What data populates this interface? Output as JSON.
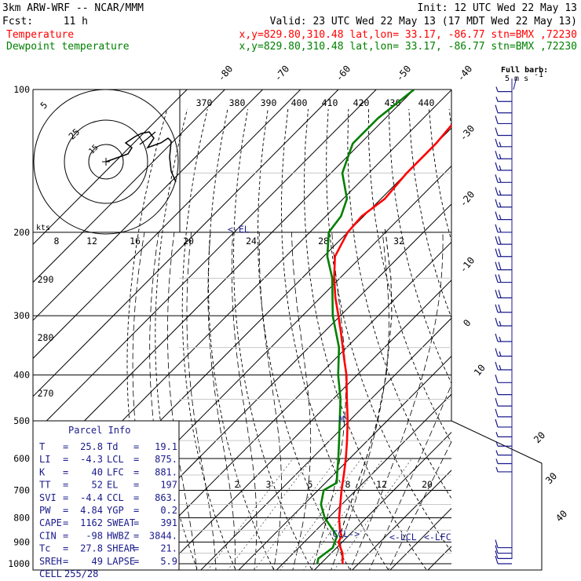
{
  "header": {
    "title": "3km ARW-WRF -- NCAR/MMM",
    "init": "Init: 12 UTC Wed 22 May 13",
    "fcst_label": "Fcst:",
    "fcst_value": "11 h",
    "valid": "Valid: 23 UTC Wed 22 May 13 (17 MDT Wed 22 May 13)"
  },
  "legend": [
    {
      "name": "Temperature",
      "info": "x,y=829.80,310.48   lat,lon= 33.17, -86.77  stn=BMX ,72230",
      "color": "#ff0000"
    },
    {
      "name": "Dewpoint temperature",
      "info": "x,y=829.80,310.48   lat,lon= 33.17, -86.77  stn=BMX ,72230",
      "color": "#008000"
    }
  ],
  "colors": {
    "temperature": "#ff0000",
    "dewpoint": "#008000",
    "wind": "#1a1a8c",
    "grid": "#000000",
    "mixing": "#555555"
  },
  "chart_data": {
    "type": "line",
    "subtype": "skew-t log-p",
    "ylabel_ticks": [
      "100",
      "200",
      "300",
      "400",
      "500",
      "600",
      "700",
      "800",
      "900",
      "1000"
    ],
    "isotherm_labels": [
      "-80",
      "-70",
      "-60",
      "-50",
      "-40",
      "-30",
      "-20",
      "-10",
      "0",
      "10",
      "20",
      "30",
      "40"
    ],
    "theta_labels": [
      "370",
      "380",
      "390",
      "400",
      "410",
      "420",
      "430",
      "440"
    ],
    "theta_side_labels": [
      "290",
      "280",
      "270"
    ],
    "mixing_labels": [
      "2",
      "3",
      "5",
      "8",
      "12",
      "20"
    ],
    "series": [
      {
        "name": "Temperature",
        "pressure": [
          1000,
          950,
          925,
          900,
          875,
          850,
          800,
          750,
          700,
          650,
          600,
          550,
          500,
          450,
          400,
          375,
          350,
          325,
          300,
          275,
          250,
          225,
          200,
          185,
          170,
          150,
          130,
          115,
          100
        ],
        "values": [
          25.8,
          23.0,
          21.0,
          19.0,
          18.3,
          16.3,
          12.8,
          9.6,
          6.2,
          2.8,
          -1.0,
          -5.4,
          -10.4,
          -16.3,
          -22.8,
          -26.8,
          -31.0,
          -35.5,
          -40.5,
          -46.0,
          -51.5,
          -57.0,
          -60.0,
          -60.5,
          -59.0,
          -60.0,
          -60.0,
          -61.0,
          -62.5
        ]
      },
      {
        "name": "Dewpoint temperature",
        "pressure": [
          1000,
          975,
          950,
          925,
          900,
          875,
          850,
          800,
          750,
          700,
          675,
          650,
          600,
          550,
          500,
          450,
          400,
          350,
          300,
          250,
          225,
          200,
          185,
          170,
          150,
          130,
          115,
          100
        ],
        "values": [
          19.1,
          18.0,
          18.5,
          19.0,
          18.0,
          17.1,
          14.5,
          9.0,
          4.5,
          1.5,
          3.0,
          1.0,
          -3.0,
          -7.5,
          -12.5,
          -18.0,
          -25.0,
          -32.0,
          -42.0,
          -52.0,
          -59.0,
          -65.0,
          -66.0,
          -69.0,
          -77.0,
          -82.0,
          -82.0,
          -80.0
        ]
      }
    ],
    "parcel_path": {
      "pressure": [
        1000,
        875,
        800,
        700,
        600,
        500,
        400,
        300,
        250,
        200,
        197
      ],
      "values": [
        25.8,
        17.8,
        14.5,
        9.8,
        4.4,
        -2.6,
        -12.3,
        -26.4,
        -36.5,
        -50.0,
        -51.0
      ]
    },
    "wind_barbs": [
      {
        "p": 1000,
        "spd": 10
      },
      {
        "p": 975,
        "spd": 10
      },
      {
        "p": 950,
        "spd": 10
      },
      {
        "p": 925,
        "spd": 10
      },
      {
        "p": 640,
        "spd": 5
      },
      {
        "p": 615,
        "spd": 5
      },
      {
        "p": 590,
        "spd": 5
      },
      {
        "p": 565,
        "spd": 5
      },
      {
        "p": 540,
        "spd": 5
      },
      {
        "p": 515,
        "spd": 10
      },
      {
        "p": 490,
        "spd": 10
      },
      {
        "p": 465,
        "spd": 10
      },
      {
        "p": 440,
        "spd": 10
      },
      {
        "p": 415,
        "spd": 10
      },
      {
        "p": 390,
        "spd": 15
      },
      {
        "p": 365,
        "spd": 15
      },
      {
        "p": 340,
        "spd": 15
      },
      {
        "p": 315,
        "spd": 15
      },
      {
        "p": 295,
        "spd": 20
      },
      {
        "p": 275,
        "spd": 20
      },
      {
        "p": 255,
        "spd": 20
      },
      {
        "p": 240,
        "spd": 20
      },
      {
        "p": 225,
        "spd": 20
      },
      {
        "p": 212,
        "spd": 20
      },
      {
        "p": 200,
        "spd": 15
      },
      {
        "p": 188,
        "spd": 15
      },
      {
        "p": 177,
        "spd": 15
      },
      {
        "p": 167,
        "spd": 15
      },
      {
        "p": 157,
        "spd": 15
      },
      {
        "p": 148,
        "spd": 15
      },
      {
        "p": 140,
        "spd": 15
      },
      {
        "p": 132,
        "spd": 15
      },
      {
        "p": 125,
        "spd": 10
      },
      {
        "p": 118,
        "spd": 10
      },
      {
        "p": 112,
        "spd": 10
      },
      {
        "p": 106,
        "spd": 5
      },
      {
        "p": 101,
        "spd": 5
      }
    ],
    "wind_scale": [
      "Full barb:",
      "5 m s"
    ],
    "level_markers": [
      {
        "label": "<-EL",
        "p": 197
      },
      {
        "label": "M",
        "p": 500
      },
      {
        "label": "CCL->",
        "p": 863
      },
      {
        "label": "<-LCL",
        "p": 875
      },
      {
        "label": "<-LFC",
        "p": 881
      }
    ]
  },
  "hodograph": {
    "ring_labels": [
      "5",
      "25",
      "15"
    ],
    "units": "kts"
  },
  "hodograph_scale": [
    "8",
    "12",
    "16",
    "20",
    "24",
    "28",
    "32"
  ],
  "parcel_info": {
    "title": "Parcel Info",
    "rows": [
      [
        "T",
        "25.8",
        "Td",
        "19.1"
      ],
      [
        "LI",
        "-4.3",
        "LCL",
        "875."
      ],
      [
        "K",
        "40",
        "LFC",
        "881."
      ],
      [
        "TT",
        "52",
        "EL",
        "197"
      ],
      [
        "SVI",
        "-4.4",
        "CCL",
        "863."
      ],
      [
        "PW",
        "4.84",
        "YGP",
        "0.2"
      ],
      [
        "CAPE",
        "1162",
        "SWEAT",
        "391"
      ],
      [
        "CIN",
        "-98",
        "HWBZ",
        "3844."
      ],
      [
        "Tc",
        "27.8",
        "SHEAR",
        "21."
      ],
      [
        "SREH",
        "49",
        "LAPSE",
        "5.9"
      ],
      [
        "CELL",
        "255/28",
        "",
        ""
      ]
    ]
  }
}
